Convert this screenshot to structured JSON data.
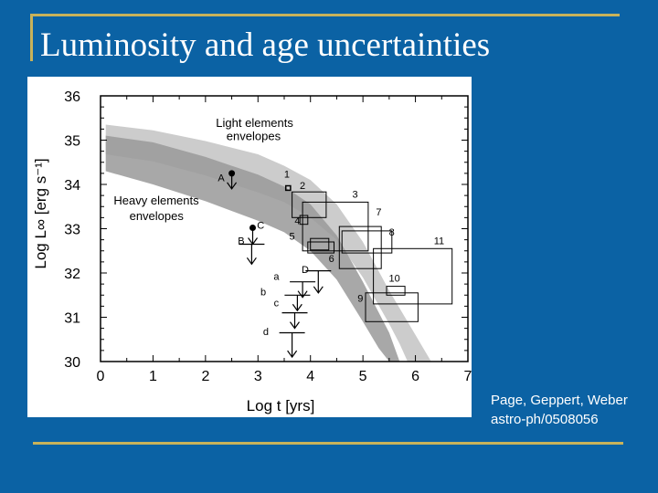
{
  "title": "Luminosity and age uncertainties",
  "citation": {
    "line1": "Page, Geppert, Weber",
    "line2": "astro-ph/0508056"
  },
  "colors": {
    "background": "#0b62a4",
    "rule": "#c8b25a",
    "light_band": "#cccccc",
    "heavy_band": "#999999"
  },
  "chart_data": {
    "type": "area",
    "title": "",
    "xlabel": "Log t [yrs]",
    "ylabel": "Log L∞ [erg s⁻¹]",
    "xlim": [
      0,
      7
    ],
    "ylim": [
      30,
      36
    ],
    "x_ticks": [
      "0",
      "1",
      "2",
      "3",
      "4",
      "5",
      "6",
      "7"
    ],
    "y_ticks": [
      "30",
      "31",
      "32",
      "33",
      "34",
      "35",
      "36"
    ],
    "grid": false,
    "bands": [
      {
        "label": "Light elements envelopes",
        "upper": [
          [
            0.1,
            35.35
          ],
          [
            1.0,
            35.22
          ],
          [
            2.0,
            34.98
          ],
          [
            3.0,
            34.68
          ],
          [
            3.5,
            34.42
          ],
          [
            4.0,
            34.1
          ],
          [
            4.5,
            33.55
          ],
          [
            5.0,
            32.7
          ],
          [
            5.5,
            31.6
          ],
          [
            6.0,
            30.6
          ],
          [
            6.3,
            30.0
          ]
        ],
        "lower": [
          [
            0.1,
            34.68
          ],
          [
            1.0,
            34.52
          ],
          [
            2.0,
            34.2
          ],
          [
            3.0,
            33.82
          ],
          [
            3.5,
            33.6
          ],
          [
            4.0,
            33.25
          ],
          [
            4.5,
            32.75
          ],
          [
            5.0,
            31.9
          ],
          [
            5.5,
            30.85
          ],
          [
            5.7,
            30.4
          ],
          [
            5.85,
            30.0
          ]
        ]
      },
      {
        "label": "Heavy elements envelopes",
        "upper": [
          [
            0.1,
            35.1
          ],
          [
            1.0,
            34.95
          ],
          [
            2.0,
            34.62
          ],
          [
            3.0,
            34.22
          ],
          [
            3.5,
            33.95
          ],
          [
            4.0,
            33.55
          ],
          [
            4.5,
            32.85
          ],
          [
            5.0,
            31.8
          ],
          [
            5.5,
            30.65
          ],
          [
            5.7,
            30.0
          ]
        ],
        "lower": [
          [
            0.1,
            34.3
          ],
          [
            1.0,
            34.0
          ],
          [
            2.0,
            33.62
          ],
          [
            3.0,
            33.18
          ],
          [
            3.5,
            32.92
          ],
          [
            4.0,
            32.5
          ],
          [
            4.5,
            31.85
          ],
          [
            5.0,
            30.9
          ],
          [
            5.3,
            30.3
          ],
          [
            5.5,
            30.0
          ]
        ]
      }
    ],
    "annotations": [
      {
        "text": "Light elements",
        "x": 2.2,
        "y": 35.3
      },
      {
        "text": "envelopes",
        "x": 2.4,
        "y": 35.0
      },
      {
        "text": "Heavy elements",
        "x": 0.25,
        "y": 33.55
      },
      {
        "text": "envelopes",
        "x": 0.55,
        "y": 33.2
      }
    ],
    "objects": [
      {
        "label": "1",
        "x": 3.55,
        "y": 34.15,
        "kind": "small_box",
        "x_range": [
          3.53,
          3.62
        ],
        "y_range": [
          33.87,
          33.97
        ]
      },
      {
        "label": "2",
        "x": 3.85,
        "y": 33.9,
        "kind": "box",
        "x_range": [
          3.65,
          4.3
        ],
        "y_range": [
          33.25,
          33.83
        ]
      },
      {
        "label": "3",
        "x": 4.85,
        "y": 33.7,
        "kind": "box",
        "x_range": [
          3.85,
          5.1
        ],
        "y_range": [
          32.5,
          33.6
        ]
      },
      {
        "label": "4",
        "x": 3.75,
        "y": 33.1,
        "kind": "box",
        "x_range": [
          3.8,
          3.95
        ],
        "y_range": [
          33.1,
          33.3
        ]
      },
      {
        "label": "5",
        "x": 3.65,
        "y": 32.75,
        "kind": "box",
        "x_range": [
          3.95,
          4.45
        ],
        "y_range": [
          32.45,
          32.7
        ]
      },
      {
        "label": "6",
        "x": 4.4,
        "y": 32.25,
        "kind": "box",
        "x_range": [
          4.0,
          4.35
        ],
        "y_range": [
          32.52,
          32.78
        ]
      },
      {
        "label": "7",
        "x": 5.3,
        "y": 33.3,
        "kind": "box",
        "x_range": [
          4.55,
          5.35
        ],
        "y_range": [
          32.1,
          33.05
        ]
      },
      {
        "label": "8",
        "x": 5.55,
        "y": 32.85,
        "kind": "box",
        "x_range": [
          4.6,
          5.55
        ],
        "y_range": [
          32.45,
          32.95
        ]
      },
      {
        "label": "9",
        "x": 4.95,
        "y": 31.35,
        "kind": "box",
        "x_range": [
          5.05,
          6.05
        ],
        "y_range": [
          30.9,
          31.55
        ]
      },
      {
        "label": "10",
        "x": 5.6,
        "y": 31.8,
        "kind": "box",
        "x_range": [
          5.45,
          5.8
        ],
        "y_range": [
          31.5,
          31.7
        ]
      },
      {
        "label": "11",
        "x": 6.45,
        "y": 32.65,
        "kind": "box",
        "x_range": [
          5.2,
          6.7
        ],
        "y_range": [
          31.3,
          32.55
        ]
      },
      {
        "label": "A",
        "x": 2.3,
        "y": 34.07,
        "kind": "upper_limit_point",
        "point": [
          2.5,
          34.25
        ],
        "limit_to": 33.9
      },
      {
        "label": "B",
        "x": 2.68,
        "y": 32.65,
        "kind": "upper_limit",
        "point": [
          2.88,
          32.65
        ],
        "limit_to": 32.2
      },
      {
        "label": "C",
        "x": 3.05,
        "y": 33.0,
        "kind": "upper_limit_point",
        "point": [
          2.9,
          33.02
        ],
        "limit_to": 32.65
      },
      {
        "label": "D",
        "x": 3.9,
        "y": 32.0,
        "kind": "upper_limit",
        "point": [
          4.15,
          32.05
        ],
        "limit_to": 31.55
      },
      {
        "label": "a",
        "x": 3.35,
        "y": 31.85,
        "kind": "upper_limit",
        "point": [
          3.85,
          31.8
        ],
        "limit_to": 31.45
      },
      {
        "label": "b",
        "x": 3.1,
        "y": 31.5,
        "kind": "upper_limit",
        "point": [
          3.75,
          31.5
        ],
        "limit_to": 31.15
      },
      {
        "label": "c",
        "x": 3.35,
        "y": 31.25,
        "kind": "upper_limit",
        "point": [
          3.7,
          31.1
        ],
        "limit_to": 30.75
      },
      {
        "label": "d",
        "x": 3.15,
        "y": 30.6,
        "kind": "upper_limit",
        "point": [
          3.65,
          30.65
        ],
        "limit_to": 30.1
      }
    ]
  }
}
